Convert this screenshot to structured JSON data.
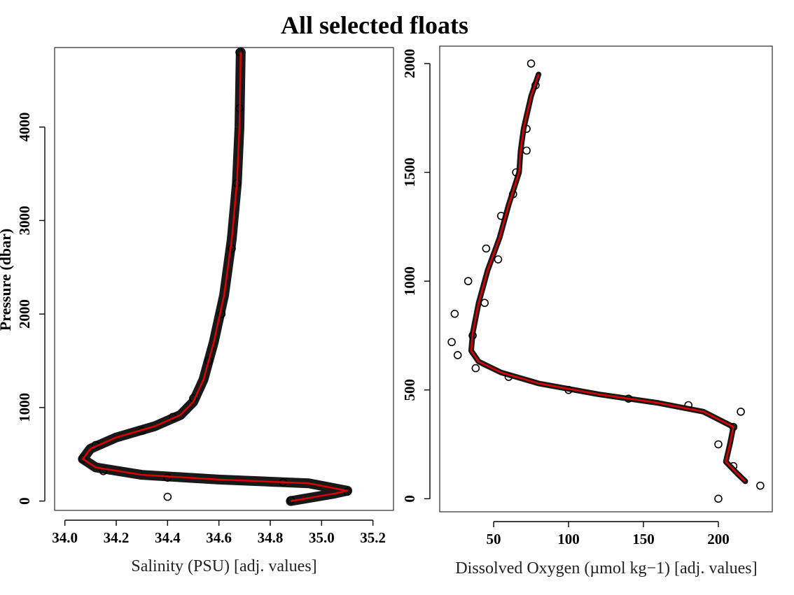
{
  "figure": {
    "title": "All selected floats"
  },
  "chart_data": [
    {
      "type": "scatter",
      "ylabel": "Pressure (dbar)",
      "xlabel": "Salinity (PSU)  [adj. values]",
      "xlim": [
        33.96,
        35.28
      ],
      "ylim": [
        4850,
        -100
      ],
      "y_inverted": true,
      "x_ticks": [
        "34.0",
        "34.2",
        "34.4",
        "34.6",
        "34.8",
        "35.0",
        "35.2"
      ],
      "y_ticks": [
        "0",
        "1000",
        "2000",
        "3000",
        "4000"
      ],
      "mean_line_color": "#e00000",
      "marker_color": "#000000",
      "series": [
        {
          "name": "",
          "values": [
            {
              "x": 34.4,
              "y": 45
            },
            {
              "x": 34.88,
              "y": 10
            },
            {
              "x": 35.1,
              "y": 100
            },
            {
              "x": 34.85,
              "y": 200
            },
            {
              "x": 34.4,
              "y": 250
            },
            {
              "x": 34.15,
              "y": 320
            },
            {
              "x": 34.07,
              "y": 450
            },
            {
              "x": 34.12,
              "y": 600
            },
            {
              "x": 34.3,
              "y": 750
            },
            {
              "x": 34.42,
              "y": 900
            },
            {
              "x": 34.5,
              "y": 1100
            },
            {
              "x": 34.56,
              "y": 1500
            },
            {
              "x": 34.61,
              "y": 2000
            },
            {
              "x": 34.65,
              "y": 2700
            },
            {
              "x": 34.67,
              "y": 3400
            },
            {
              "x": 34.68,
              "y": 4200
            },
            {
              "x": 34.68,
              "y": 4800
            }
          ]
        }
      ],
      "mean_profile": [
        {
          "x": 34.88,
          "y": 0
        },
        {
          "x": 35.05,
          "y": 80
        },
        {
          "x": 35.1,
          "y": 110
        },
        {
          "x": 34.95,
          "y": 190
        },
        {
          "x": 34.6,
          "y": 230
        },
        {
          "x": 34.3,
          "y": 280
        },
        {
          "x": 34.12,
          "y": 360
        },
        {
          "x": 34.07,
          "y": 450
        },
        {
          "x": 34.1,
          "y": 560
        },
        {
          "x": 34.2,
          "y": 680
        },
        {
          "x": 34.35,
          "y": 800
        },
        {
          "x": 34.45,
          "y": 920
        },
        {
          "x": 34.5,
          "y": 1060
        },
        {
          "x": 34.54,
          "y": 1300
        },
        {
          "x": 34.58,
          "y": 1700
        },
        {
          "x": 34.62,
          "y": 2200
        },
        {
          "x": 34.65,
          "y": 2800
        },
        {
          "x": 34.67,
          "y": 3400
        },
        {
          "x": 34.68,
          "y": 4000
        },
        {
          "x": 34.685,
          "y": 4800
        }
      ]
    },
    {
      "type": "scatter",
      "ylabel": "",
      "xlabel": "Dissolved Oxygen (µmol kg−1)  [adj. values]",
      "xlim": [
        14,
        236
      ],
      "ylim": [
        2080,
        -60
      ],
      "y_inverted": true,
      "x_ticks": [
        "50",
        "100",
        "150",
        "200"
      ],
      "x_tick_values": [
        50,
        100,
        150,
        200
      ],
      "y_ticks": [
        "0",
        "500",
        "1000",
        "1500",
        "2000"
      ],
      "mean_line_color": "#e00000",
      "marker_color": "#000000",
      "series": [
        {
          "name": "",
          "values": [
            {
              "x": 200,
              "y": 0
            },
            {
              "x": 228,
              "y": 60
            },
            {
              "x": 210,
              "y": 150
            },
            {
              "x": 200,
              "y": 250
            },
            {
              "x": 210,
              "y": 330
            },
            {
              "x": 215,
              "y": 400
            },
            {
              "x": 180,
              "y": 430
            },
            {
              "x": 140,
              "y": 460
            },
            {
              "x": 100,
              "y": 500
            },
            {
              "x": 60,
              "y": 560
            },
            {
              "x": 38,
              "y": 600
            },
            {
              "x": 26,
              "y": 660
            },
            {
              "x": 22,
              "y": 720
            },
            {
              "x": 24,
              "y": 850
            },
            {
              "x": 33,
              "y": 1000
            },
            {
              "x": 45,
              "y": 1150
            },
            {
              "x": 55,
              "y": 1300
            },
            {
              "x": 65,
              "y": 1500
            },
            {
              "x": 72,
              "y": 1700
            },
            {
              "x": 78,
              "y": 1900
            },
            {
              "x": 75,
              "y": 2000
            },
            {
              "x": 72,
              "y": 1600
            },
            {
              "x": 63,
              "y": 1400
            },
            {
              "x": 53,
              "y": 1100
            },
            {
              "x": 44,
              "y": 900
            },
            {
              "x": 36,
              "y": 750
            }
          ]
        }
      ],
      "mean_profile": [
        {
          "x": 218,
          "y": 80
        },
        {
          "x": 212,
          "y": 120
        },
        {
          "x": 205,
          "y": 170
        },
        {
          "x": 208,
          "y": 260
        },
        {
          "x": 210,
          "y": 330
        },
        {
          "x": 190,
          "y": 400
        },
        {
          "x": 160,
          "y": 440
        },
        {
          "x": 120,
          "y": 480
        },
        {
          "x": 80,
          "y": 530
        },
        {
          "x": 55,
          "y": 580
        },
        {
          "x": 40,
          "y": 630
        },
        {
          "x": 35,
          "y": 680
        },
        {
          "x": 36,
          "y": 760
        },
        {
          "x": 40,
          "y": 900
        },
        {
          "x": 46,
          "y": 1050
        },
        {
          "x": 54,
          "y": 1200
        },
        {
          "x": 60,
          "y": 1350
        },
        {
          "x": 67,
          "y": 1500
        },
        {
          "x": 68,
          "y": 1600
        },
        {
          "x": 70,
          "y": 1700
        },
        {
          "x": 75,
          "y": 1850
        },
        {
          "x": 80,
          "y": 1950
        }
      ]
    }
  ]
}
